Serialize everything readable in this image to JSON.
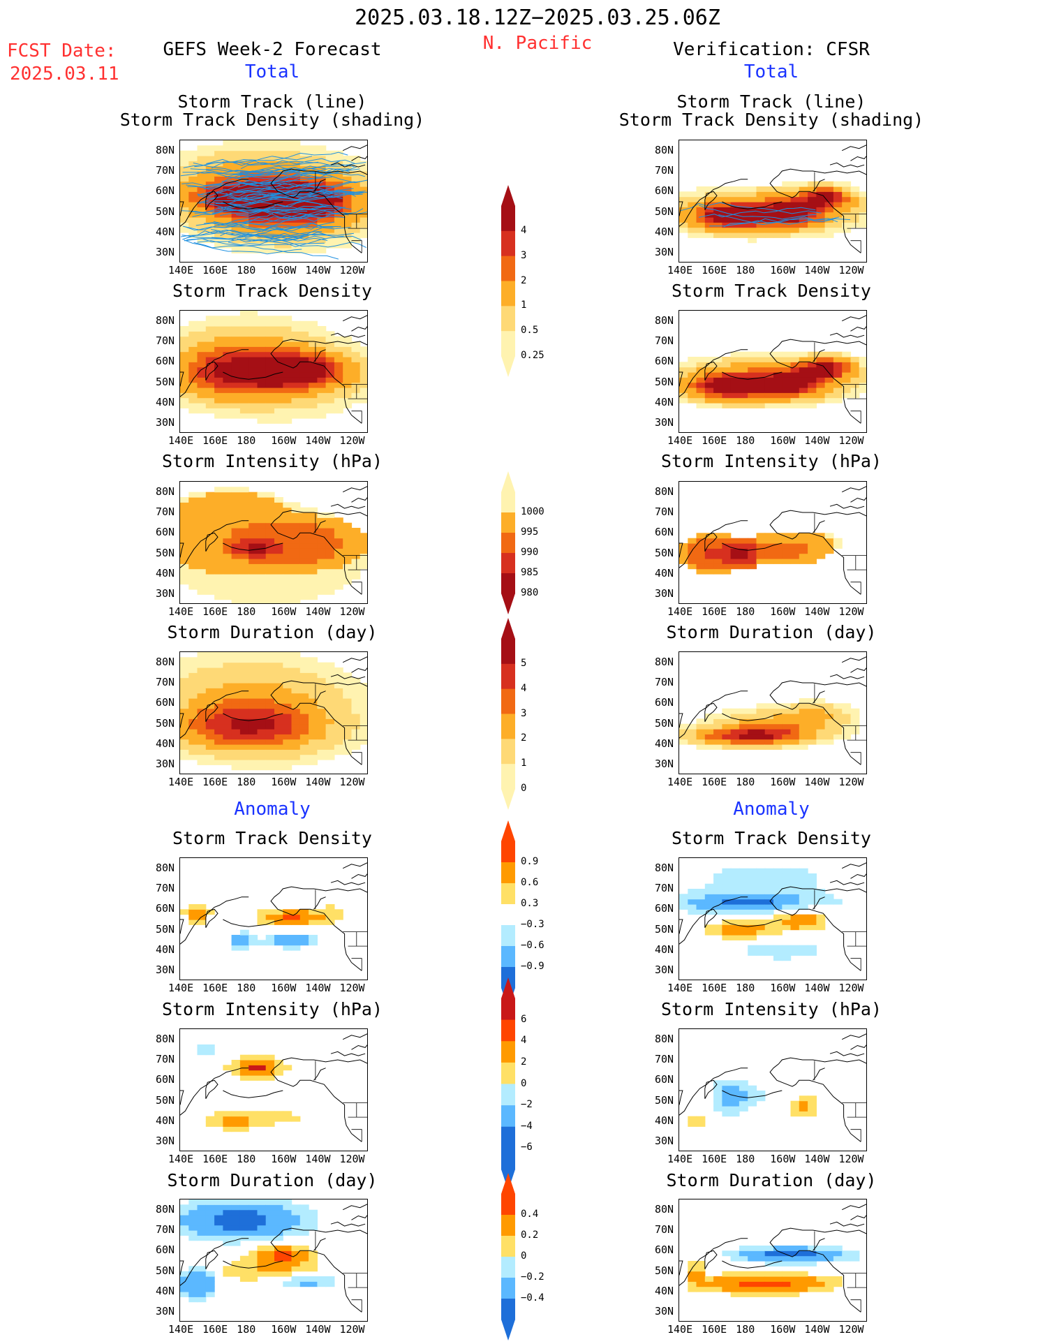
{
  "header": {
    "date_range": "2025.03.18.12Z−2025.03.25.06Z",
    "region": "N. Pacific",
    "fcst_label": "FCST Date:",
    "fcst_date": "2025.03.11",
    "left_title": "GEFS Week-2 Forecast",
    "right_title": "Verification: CFSR",
    "total_label": "Total",
    "anomaly_label": "Anomaly"
  },
  "panel_titles": {
    "track_line": "Storm Track (line)",
    "track_shading": "Storm Track Density (shading)",
    "density": "Storm Track Density",
    "intensity": "Storm Intensity (hPa)",
    "duration": "Storm Duration (day)"
  },
  "axes": {
    "lat_labels": [
      "80N",
      "70N",
      "60N",
      "50N",
      "40N",
      "30N"
    ],
    "lon_labels": [
      "140E",
      "160E",
      "180",
      "160W",
      "140W",
      "120W"
    ]
  },
  "colorbars": {
    "density": {
      "labels": [
        "4",
        "3",
        "2",
        "1",
        "0.5",
        "0.25"
      ],
      "colors": [
        "#a50f15",
        "#d7301f",
        "#f16913",
        "#fdae28",
        "#fed976",
        "#fff3b0"
      ]
    },
    "intensity": {
      "labels": [
        "1000",
        "995",
        "990",
        "985",
        "980"
      ],
      "colors": [
        "#fff3b0",
        "#fdae28",
        "#f16913",
        "#d7301f",
        "#a50f15"
      ]
    },
    "duration": {
      "labels": [
        "5",
        "4",
        "3",
        "2",
        "1",
        "0"
      ],
      "colors": [
        "#a50f15",
        "#d7301f",
        "#f16913",
        "#fdae28",
        "#fed976",
        "#fff3b0"
      ]
    },
    "density_anom": {
      "labels": [
        "0.9",
        "0.6",
        "0.3",
        "−0.3",
        "−0.6",
        "−0.9"
      ],
      "colors": [
        "#ff4500",
        "#ff9a00",
        "#ffe066",
        "#ffffff",
        "#b3ecff",
        "#5bb8ff",
        "#1e6fd9"
      ]
    },
    "intensity_anom": {
      "labels": [
        "6",
        "4",
        "2",
        "0",
        "−2",
        "−4",
        "−6"
      ],
      "colors": [
        "#c91818",
        "#ff4500",
        "#ff9a00",
        "#ffe066",
        "#b3ecff",
        "#5bb8ff",
        "#1e6fd9",
        "#1e6fd9"
      ]
    },
    "duration_anom": {
      "labels": [
        "0.4",
        "0.2",
        "0",
        "−0.2",
        "−0.4"
      ],
      "colors": [
        "#ff4500",
        "#ff9a00",
        "#ffe066",
        "#b3ecff",
        "#5bb8ff",
        "#1e6fd9"
      ]
    }
  },
  "map_data": {
    "lon_range": [
      140,
      250
    ],
    "lat_range": [
      25,
      85
    ],
    "panels": [
      {
        "id": "fc-track",
        "type": "density_tracks",
        "blobs": [
          [
            200,
            55,
            38,
            12,
            4
          ],
          [
            175,
            57,
            25,
            7,
            3.4
          ],
          [
            215,
            55,
            22,
            8,
            3.2
          ],
          [
            195,
            60,
            55,
            20,
            1.3
          ],
          [
            170,
            65,
            40,
            15,
            0.6
          ],
          [
            200,
            45,
            55,
            18,
            0.4
          ]
        ]
      },
      {
        "id": "fc-density",
        "type": "density",
        "blobs": [
          [
            205,
            56,
            30,
            8,
            4.3
          ],
          [
            185,
            55,
            45,
            12,
            2.6
          ],
          [
            180,
            65,
            50,
            18,
            0.9
          ],
          [
            165,
            55,
            25,
            12,
            1.4
          ],
          [
            200,
            45,
            60,
            20,
            0.4
          ]
        ]
      },
      {
        "id": "fc-intensity",
        "type": "intensity",
        "blobs": [
          [
            185,
            53,
            22,
            7,
            979
          ],
          [
            200,
            55,
            50,
            15,
            986
          ],
          [
            170,
            60,
            45,
            22,
            990
          ],
          [
            190,
            50,
            60,
            25,
            995
          ]
        ]
      },
      {
        "id": "fc-duration",
        "type": "duration",
        "blobs": [
          [
            180,
            48,
            45,
            12,
            3.4
          ],
          [
            175,
            62,
            55,
            22,
            1.5
          ],
          [
            195,
            55,
            60,
            25,
            1.2
          ]
        ]
      },
      {
        "id": "fc-dens-anom",
        "type": "density_anom",
        "blobs": [
          [
            205,
            56,
            22,
            5,
            0.95
          ],
          [
            150,
            58,
            8,
            5,
            0.9
          ],
          [
            175,
            45,
            8,
            4,
            -0.95
          ],
          [
            205,
            45,
            18,
            4,
            -0.9
          ],
          [
            230,
            58,
            12,
            5,
            0.4
          ]
        ]
      },
      {
        "id": "fc-int-anom",
        "type": "intensity_anom",
        "blobs": [
          [
            185,
            66,
            18,
            6,
            6.5
          ],
          [
            170,
            40,
            18,
            5,
            4.5
          ],
          [
            200,
            42,
            30,
            5,
            2.5
          ],
          [
            155,
            75,
            10,
            6,
            -2.5
          ],
          [
            215,
            50,
            20,
            5,
            -1.5
          ]
        ]
      },
      {
        "id": "fc-dur-anom",
        "type": "duration_anom",
        "blobs": [
          [
            175,
            75,
            40,
            10,
            -0.5
          ],
          [
            150,
            45,
            12,
            8,
            -0.45
          ],
          [
            200,
            58,
            18,
            5,
            0.45
          ],
          [
            190,
            50,
            45,
            6,
            0.2
          ],
          [
            215,
            45,
            20,
            4,
            -0.3
          ]
        ]
      },
      {
        "id": "vf-track",
        "type": "density_tracks",
        "blobs": [
          [
            170,
            48,
            20,
            6,
            4.4
          ],
          [
            205,
            50,
            18,
            6,
            4.3
          ],
          [
            225,
            57,
            15,
            5,
            4.4
          ],
          [
            190,
            50,
            50,
            10,
            2.2
          ]
        ]
      },
      {
        "id": "vf-density",
        "type": "density",
        "blobs": [
          [
            170,
            48,
            22,
            6,
            4.4
          ],
          [
            205,
            50,
            18,
            6,
            4.3
          ],
          [
            225,
            57,
            15,
            5,
            4.5
          ],
          [
            190,
            51,
            50,
            10,
            2.2
          ]
        ]
      },
      {
        "id": "vf-intensity",
        "type": "intensity",
        "blobs": [
          [
            175,
            50,
            15,
            8,
            978
          ],
          [
            160,
            50,
            20,
            10,
            984
          ],
          [
            200,
            52,
            30,
            8,
            988
          ],
          [
            220,
            55,
            15,
            6,
            992
          ]
        ]
      },
      {
        "id": "vf-duration",
        "type": "duration",
        "blobs": [
          [
            180,
            44,
            35,
            5,
            4.5
          ],
          [
            200,
            50,
            40,
            8,
            2.5
          ],
          [
            220,
            56,
            18,
            5,
            1.5
          ]
        ]
      },
      {
        "id": "vf-dens-anom",
        "type": "density_anom",
        "blobs": [
          [
            210,
            55,
            18,
            6,
            0.95
          ],
          [
            175,
            50,
            20,
            5,
            0.9
          ],
          [
            180,
            63,
            50,
            6,
            -0.9
          ],
          [
            190,
            75,
            60,
            12,
            -0.4
          ],
          [
            200,
            40,
            30,
            5,
            -0.6
          ]
        ]
      },
      {
        "id": "vf-int-anom",
        "type": "intensity_anom",
        "blobs": [
          [
            212,
            48,
            10,
            6,
            6.5
          ],
          [
            150,
            40,
            5,
            4,
            6
          ],
          [
            170,
            52,
            12,
            10,
            -5
          ],
          [
            195,
            52,
            30,
            8,
            -2
          ]
        ]
      },
      {
        "id": "vf-dur-anom",
        "type": "duration_anom",
        "blobs": [
          [
            190,
            44,
            40,
            5,
            0.5
          ],
          [
            205,
            58,
            35,
            4,
            -0.5
          ],
          [
            150,
            50,
            4,
            6,
            0.3
          ]
        ]
      }
    ]
  }
}
